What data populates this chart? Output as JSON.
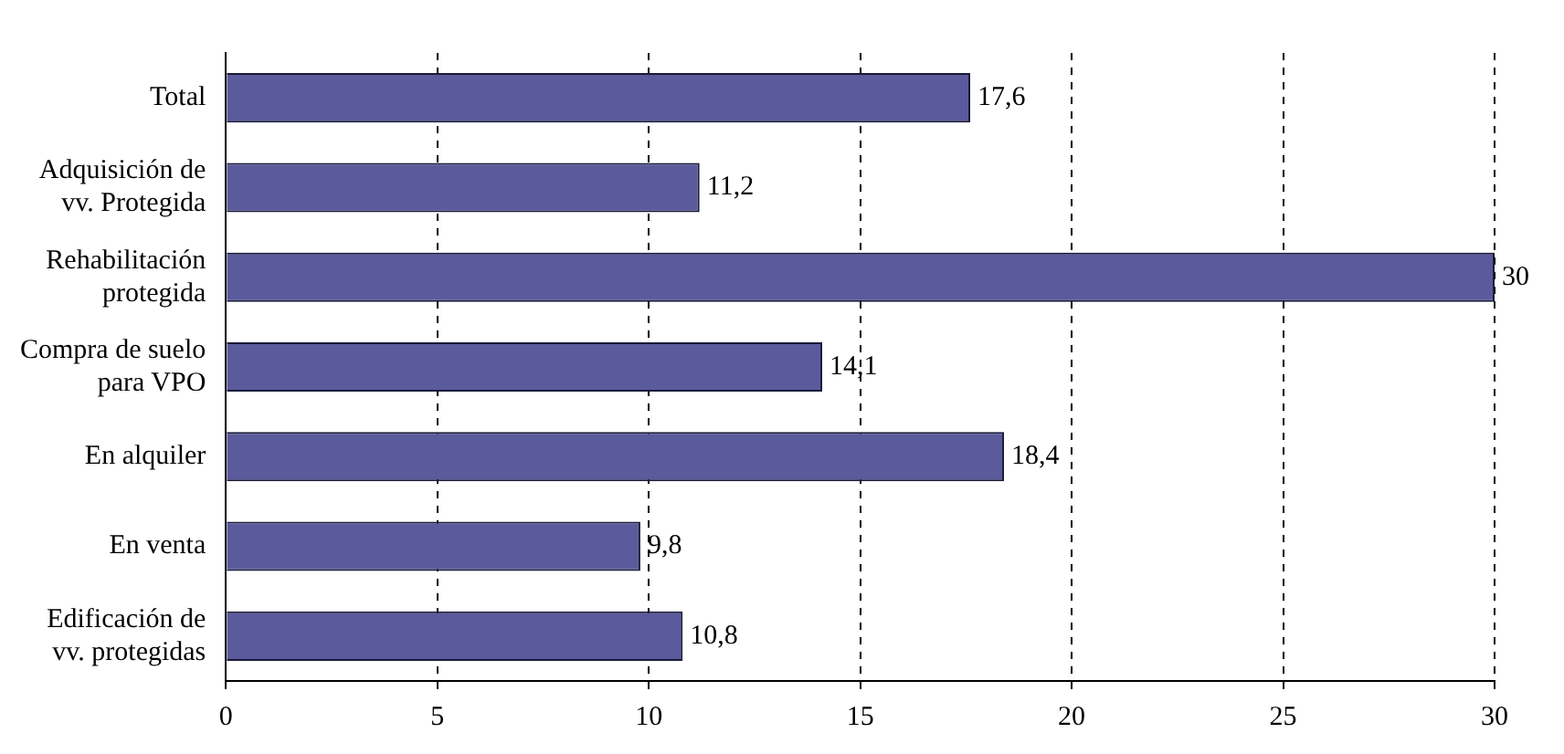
{
  "chart_data": {
    "type": "bar",
    "orientation": "horizontal",
    "categories": [
      "Total",
      "Adquisición de vv. Protegida",
      "Rehabilitación protegida",
      "Compra de suelo para VPO",
      "En alquiler",
      "En venta",
      "Edificación de vv. protegidas"
    ],
    "values": [
      17.6,
      11.2,
      30,
      14.1,
      18.4,
      9.8,
      10.8
    ],
    "value_labels": [
      "17,6",
      "11,2",
      "30",
      "14,1",
      "18,4",
      "9,8",
      "10,8"
    ],
    "color": "#5a5a9c",
    "xlim": [
      0,
      30
    ],
    "xticks": [
      0,
      5,
      10,
      15,
      20,
      25,
      30
    ],
    "grid": "x",
    "legend": false
  }
}
